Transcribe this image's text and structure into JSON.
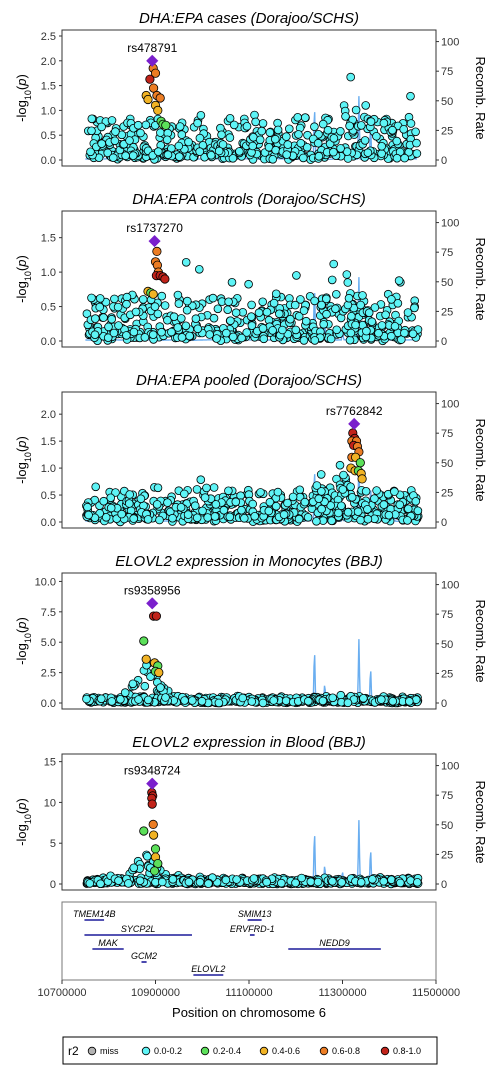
{
  "chart_data": {
    "type": "scatter",
    "x_range": [
      10700000,
      11500000
    ],
    "x_ticks": [
      10700000,
      10900000,
      11100000,
      11300000,
      11500000
    ],
    "x_tick_labels": [
      "10700000",
      "10900000",
      "11100000",
      "11300000",
      "11500000"
    ],
    "xlabel": "Position on chromosome 6",
    "ylabel": "-log10(p)",
    "ylabel_right": "Recomb. Rate",
    "recomb_ticks": [
      0,
      25,
      50,
      75,
      100
    ],
    "recomb_tick_labels": [
      "0",
      "25",
      "50",
      "75",
      "100"
    ],
    "recomb_peaks": [
      {
        "x": 10880000,
        "rate": 5
      },
      {
        "x": 11160000,
        "rate": 4
      },
      {
        "x": 11240000,
        "rate": 50
      },
      {
        "x": 11262000,
        "rate": 18
      },
      {
        "x": 11282000,
        "rate": 8
      },
      {
        "x": 11300000,
        "rate": 12
      },
      {
        "x": 11335000,
        "rate": 54
      },
      {
        "x": 11360000,
        "rate": 33
      },
      {
        "x": 11410000,
        "rate": 6
      }
    ],
    "panels": [
      {
        "title": "DHA:EPA cases (Dorajoo/SCHS)",
        "ylim": [
          0,
          2.5
        ],
        "yticks": [
          0,
          0.5,
          1.0,
          1.5,
          2.0,
          2.5
        ],
        "ytick_labels": [
          "0.0",
          "0.5",
          "1.0",
          "1.5",
          "2.0",
          "2.5"
        ],
        "lead": {
          "label": "rs478791",
          "x": 10893000,
          "y": 2.0
        },
        "colored_points": [
          {
            "x": 10888000,
            "y": 1.63,
            "r2": "0.8-1.0"
          },
          {
            "x": 10895000,
            "y": 1.85,
            "r2": "0.6-0.8"
          },
          {
            "x": 10900000,
            "y": 1.75,
            "r2": "0.6-0.8"
          },
          {
            "x": 10896000,
            "y": 1.45,
            "r2": "0.6-0.8"
          },
          {
            "x": 10903000,
            "y": 1.3,
            "r2": "0.6-0.8"
          },
          {
            "x": 10910000,
            "y": 1.25,
            "r2": "0.6-0.8"
          },
          {
            "x": 10880000,
            "y": 1.3,
            "r2": "0.4-0.6"
          },
          {
            "x": 10884000,
            "y": 1.22,
            "r2": "0.4-0.6"
          },
          {
            "x": 10900000,
            "y": 1.1,
            "r2": "0.4-0.6"
          },
          {
            "x": 10905000,
            "y": 1.0,
            "r2": "0.4-0.6"
          },
          {
            "x": 10912000,
            "y": 0.78,
            "r2": "0.2-0.4"
          },
          {
            "x": 10916000,
            "y": 0.72,
            "r2": "0.2-0.4"
          },
          {
            "x": 10922000,
            "y": 0.7,
            "r2": "0.2-0.4"
          }
        ],
        "background": {
          "base": 0.25,
          "spread": 0.8,
          "hump_x": 11315000,
          "hump_h": 1.2,
          "max": 1.95
        }
      },
      {
        "title": "DHA:EPA controls (Dorajoo/SCHS)",
        "ylim": [
          0,
          1.8
        ],
        "yticks": [
          0,
          0.5,
          1.0,
          1.5
        ],
        "ytick_labels": [
          "0.0",
          "0.5",
          "1.0",
          "1.5"
        ],
        "lead": {
          "label": "rs1737270",
          "x": 10898000,
          "y": 1.45
        },
        "colored_points": [
          {
            "x": 10903000,
            "y": 1.3,
            "r2": "0.6-0.8"
          },
          {
            "x": 10900000,
            "y": 1.15,
            "r2": "0.6-0.8"
          },
          {
            "x": 10904000,
            "y": 1.1,
            "r2": "0.6-0.8"
          },
          {
            "x": 10906000,
            "y": 1.0,
            "r2": "0.6-0.8"
          },
          {
            "x": 10902000,
            "y": 0.95,
            "r2": "0.8-1.0"
          },
          {
            "x": 10910000,
            "y": 0.95,
            "r2": "0.8-1.0"
          },
          {
            "x": 10916000,
            "y": 0.93,
            "r2": "0.8-1.0"
          },
          {
            "x": 10920000,
            "y": 0.9,
            "r2": "0.8-1.0"
          },
          {
            "x": 10884000,
            "y": 0.72,
            "r2": "0.4-0.6"
          },
          {
            "x": 10890000,
            "y": 0.7,
            "r2": "0.2-0.4"
          },
          {
            "x": 10895000,
            "y": 0.68,
            "r2": "0.4-0.6"
          }
        ],
        "background": {
          "base": 0.2,
          "spread": 0.6,
          "hump_x": 11300000,
          "hump_h": 0.9,
          "max": 1.3
        }
      },
      {
        "title": "DHA:EPA pooled (Dorajoo/SCHS)",
        "ylim": [
          0,
          2.3
        ],
        "yticks": [
          0,
          0.5,
          1.0,
          1.5,
          2.0
        ],
        "ytick_labels": [
          "0.0",
          "0.5",
          "1.0",
          "1.5",
          "2.0"
        ],
        "lead": {
          "label": "rs7762842",
          "x": 11325000,
          "y": 1.82
        },
        "colored_points": [
          {
            "x": 11322000,
            "y": 1.65,
            "r2": "0.8-1.0"
          },
          {
            "x": 11326000,
            "y": 1.55,
            "r2": "0.8-1.0"
          },
          {
            "x": 11320000,
            "y": 1.5,
            "r2": "0.6-0.8"
          },
          {
            "x": 11330000,
            "y": 1.5,
            "r2": "0.6-0.8"
          },
          {
            "x": 11324000,
            "y": 1.42,
            "r2": "0.8-1.0"
          },
          {
            "x": 11332000,
            "y": 1.4,
            "r2": "0.6-0.8"
          },
          {
            "x": 11335000,
            "y": 1.3,
            "r2": "0.6-0.8"
          },
          {
            "x": 11320000,
            "y": 1.2,
            "r2": "0.6-0.8"
          },
          {
            "x": 11328000,
            "y": 1.2,
            "r2": "0.4-0.6"
          },
          {
            "x": 11338000,
            "y": 1.1,
            "r2": "0.2-0.4"
          },
          {
            "x": 11318000,
            "y": 1.0,
            "r2": "0.4-0.6"
          },
          {
            "x": 11327000,
            "y": 0.95,
            "r2": "0.4-0.6"
          },
          {
            "x": 11334000,
            "y": 0.95,
            "r2": "0.2-0.4"
          },
          {
            "x": 11340000,
            "y": 0.9,
            "r2": "0.4-0.6"
          },
          {
            "x": 11342000,
            "y": 0.8,
            "r2": "0.4-0.6"
          }
        ],
        "background": {
          "base": 0.2,
          "spread": 0.55,
          "hump_x": 11290000,
          "hump_h": 0.9,
          "max": 1.4
        }
      },
      {
        "title": "ELOVL2 expression in Monocytes (BBJ)",
        "ylim": [
          0,
          10.2
        ],
        "yticks": [
          0,
          2.5,
          5.0,
          7.5,
          10.0
        ],
        "ytick_labels": [
          "0.0",
          "2.5",
          "5.0",
          "7.5",
          "10.0"
        ],
        "lead": {
          "label": "rs9358956",
          "x": 10893000,
          "y": 8.2
        },
        "colored_points": [
          {
            "x": 10896000,
            "y": 7.15,
            "r2": "0.8-1.0"
          },
          {
            "x": 10902000,
            "y": 7.15,
            "r2": "0.8-1.0"
          },
          {
            "x": 10875000,
            "y": 5.1,
            "r2": "0.2-0.4"
          },
          {
            "x": 10880000,
            "y": 3.6,
            "r2": "0.4-0.6"
          },
          {
            "x": 10898000,
            "y": 3.3,
            "r2": "0.4-0.6"
          },
          {
            "x": 10905000,
            "y": 3.05,
            "r2": "0.2-0.4"
          },
          {
            "x": 10900000,
            "y": 2.6,
            "r2": "0.2-0.4"
          },
          {
            "x": 10907000,
            "y": 2.5,
            "r2": "0.4-0.6"
          }
        ],
        "background": {
          "base": 0.3,
          "spread": 0.4,
          "hump_x": 10880000,
          "hump_h": 3.4,
          "max": 4.1
        }
      },
      {
        "title": "ELOVL2 expression in Blood (BBJ)",
        "ylim": [
          0,
          15.2
        ],
        "yticks": [
          0,
          5,
          10,
          15
        ],
        "ytick_labels": [
          "0",
          "5",
          "10",
          "15"
        ],
        "lead": {
          "label": "rs9348724",
          "x": 10893000,
          "y": 12.3
        },
        "colored_points": [
          {
            "x": 10892000,
            "y": 11.2,
            "r2": "0.8-1.0"
          },
          {
            "x": 10894000,
            "y": 10.8,
            "r2": "0.8-1.0"
          },
          {
            "x": 10892000,
            "y": 10.5,
            "r2": "0.8-1.0"
          },
          {
            "x": 10893000,
            "y": 9.8,
            "r2": "0.8-1.0"
          },
          {
            "x": 10895000,
            "y": 7.3,
            "r2": "0.6-0.8"
          },
          {
            "x": 10875000,
            "y": 6.5,
            "r2": "0.2-0.4"
          },
          {
            "x": 10896000,
            "y": 6.0,
            "r2": "0.4-0.6"
          },
          {
            "x": 10900000,
            "y": 4.3,
            "r2": "0.2-0.4"
          },
          {
            "x": 10900000,
            "y": 3.3,
            "r2": "0.4-0.6"
          },
          {
            "x": 10905000,
            "y": 2.5,
            "r2": "0.2-0.4"
          },
          {
            "x": 10898000,
            "y": 1.6,
            "r2": "0.2-0.4"
          }
        ],
        "background": {
          "base": 0.4,
          "spread": 0.6,
          "hump_x": 10880000,
          "hump_h": 3.4,
          "max": 4.0
        }
      }
    ],
    "genes": [
      {
        "name": "TMEM14B",
        "start": 10748000,
        "end": 10790000,
        "row": 0
      },
      {
        "name": "SYCP2L",
        "start": 10748000,
        "end": 10978000,
        "row": 1
      },
      {
        "name": "MAK",
        "start": 10765000,
        "end": 10832000,
        "row": 2
      },
      {
        "name": "GCM2",
        "start": 10870000,
        "end": 10881000,
        "row": 3
      },
      {
        "name": "ELOVL2",
        "start": 10981000,
        "end": 11045000,
        "row": 4
      },
      {
        "name": "SMIM13",
        "start": 11097000,
        "end": 11127000,
        "row": 0
      },
      {
        "name": "ERVFRD-1",
        "start": 11102000,
        "end": 11112000,
        "row": 1
      },
      {
        "name": "NEDD9",
        "start": 11184000,
        "end": 11382000,
        "row": 2
      }
    ],
    "legend": {
      "title": "r2",
      "position": "bottom",
      "entries": [
        {
          "label": "miss",
          "color": "#b3b3b3"
        },
        {
          "label": "0.0-0.2",
          "color": "#5ef4f6"
        },
        {
          "label": "0.2-0.4",
          "color": "#5ce05a"
        },
        {
          "label": "0.4-0.6",
          "color": "#f1b325"
        },
        {
          "label": "0.6-0.8",
          "color": "#ec7d24"
        },
        {
          "label": "0.8-1.0",
          "color": "#c1231a"
        }
      ]
    }
  },
  "colors": {
    "lead": "#7a1fcc",
    "recomb": "#6aaef0",
    "gene": "#1c1a9a",
    "frame": "#333333"
  }
}
